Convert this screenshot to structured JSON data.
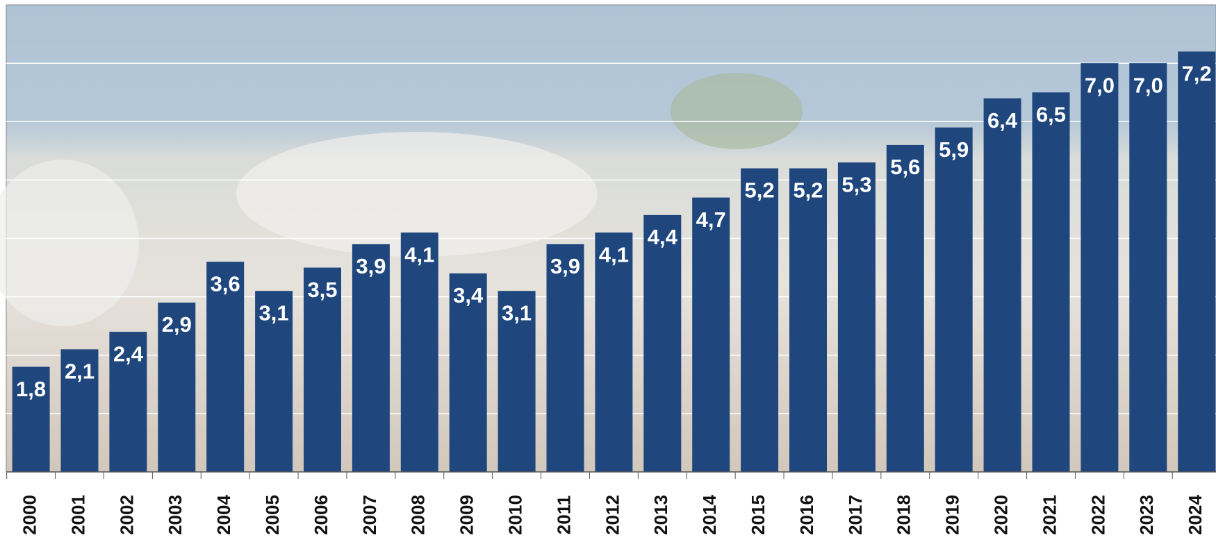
{
  "chart_data": {
    "type": "bar",
    "categories": [
      "2000",
      "2001",
      "2002",
      "2003",
      "2004",
      "2005",
      "2006",
      "2007",
      "2008",
      "2009",
      "2010",
      "2011",
      "2012",
      "2013",
      "2014",
      "2015",
      "2016",
      "2017",
      "2018",
      "2019",
      "2020",
      "2021",
      "2022",
      "2023",
      "2024"
    ],
    "values": [
      1.8,
      2.1,
      2.4,
      2.9,
      3.6,
      3.1,
      3.5,
      3.9,
      4.1,
      3.4,
      3.1,
      3.9,
      4.1,
      4.4,
      4.7,
      5.2,
      5.2,
      5.3,
      5.6,
      5.9,
      6.4,
      6.5,
      7.0,
      7.0,
      7.2
    ],
    "value_labels": [
      "1,8",
      "2,1",
      "2,4",
      "2,9",
      "3,6",
      "3,1",
      "3,5",
      "3,9",
      "4,1",
      "3,4",
      "3,1",
      "3,9",
      "4,1",
      "4,4",
      "4,7",
      "5,2",
      "5,2",
      "5,3",
      "5,6",
      "5,9",
      "6,4",
      "6,5",
      "7,0",
      "7,0",
      "7,2"
    ],
    "color": "#1f477d",
    "ylim": [
      0,
      8
    ],
    "yticks": [
      1,
      2,
      3,
      4,
      5,
      6,
      7
    ],
    "grid": true
  }
}
